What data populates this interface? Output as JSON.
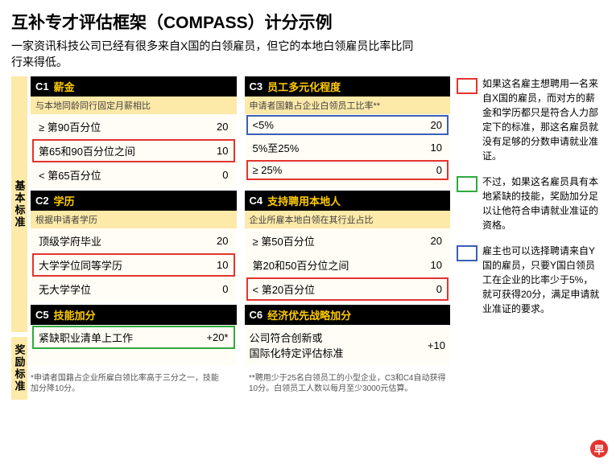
{
  "title": "互补专才评估框架（COMPASS）计分示例",
  "subtitle": "一家资讯科技公司已经有很多来自X国的白领雇员，但它的本地白领雇员比率比同行来得低。",
  "sideLabels": {
    "basic": "基本标准",
    "bonus": "奖励标准"
  },
  "cards": {
    "c1": {
      "code": "C1",
      "title": "薪金",
      "sub": "与本地同龄同行固定月薪相比",
      "rows": [
        {
          "label": "≥ 第90百分位",
          "pts": "20",
          "hl": ""
        },
        {
          "label": "第65和90百分位之间",
          "pts": "10",
          "hl": "red"
        },
        {
          "label": "< 第65百分位",
          "pts": "0",
          "hl": ""
        }
      ]
    },
    "c2": {
      "code": "C2",
      "title": "学历",
      "sub": "根据申请者学历",
      "rows": [
        {
          "label": "顶级学府毕业",
          "pts": "20",
          "hl": ""
        },
        {
          "label": "大学学位同等学历",
          "pts": "10",
          "hl": "red"
        },
        {
          "label": "无大学学位",
          "pts": "0",
          "hl": ""
        }
      ]
    },
    "c3": {
      "code": "C3",
      "title": "员工多元化程度",
      "sub": "申请者国籍占企业白领员工比率**",
      "rows": [
        {
          "label": "<5%",
          "pts": "20",
          "hl": "blue"
        },
        {
          "label": "5%至25%",
          "pts": "10",
          "hl": ""
        },
        {
          "label": "≥ 25%",
          "pts": "0",
          "hl": "red"
        }
      ]
    },
    "c4": {
      "code": "C4",
      "title": "支持聘用本地人",
      "sub": "企业所雇本地白领在其行业占比",
      "rows": [
        {
          "label": "≥ 第50百分位",
          "pts": "20",
          "hl": ""
        },
        {
          "label": "第20和50百分位之间",
          "pts": "10",
          "hl": ""
        },
        {
          "label": "< 第20百分位",
          "pts": "0",
          "hl": "red"
        }
      ]
    },
    "c5": {
      "code": "C5",
      "title": "技能加分",
      "row": {
        "label": "紧缺职业清单上工作",
        "pts": "+20*",
        "hl": "green"
      }
    },
    "c6": {
      "code": "C6",
      "title": "经济优先战略加分",
      "row": {
        "label": "公司符合创新或\n国际化特定评估标准",
        "pts": "+10"
      }
    }
  },
  "footnotes": {
    "a": "*申请者国籍占企业所雇白领比率高于三分之一，技能加分降10分。",
    "b": "**聘用少于25名白领员工的小型企业，C3和C4自动获得10分。白领员工人数以每月至少3000元估算。"
  },
  "legend": {
    "red": "如果这名雇主想聘用一名来自X国的雇员，而对方的薪金和学历都只是符合人力部定下的标准，那这名雇员就没有足够的分数申请就业准证。",
    "green": "不过，如果这名雇员具有本地紧缺的技能，奖励加分足以让他符合申请就业准证的资格。",
    "blue": "雇主也可以选择聘请来自Y国的雇员，只要Y国白领员工在企业的比率少于5%，就可获得20分，满足申请就业准证的要求。"
  },
  "logo": "早"
}
